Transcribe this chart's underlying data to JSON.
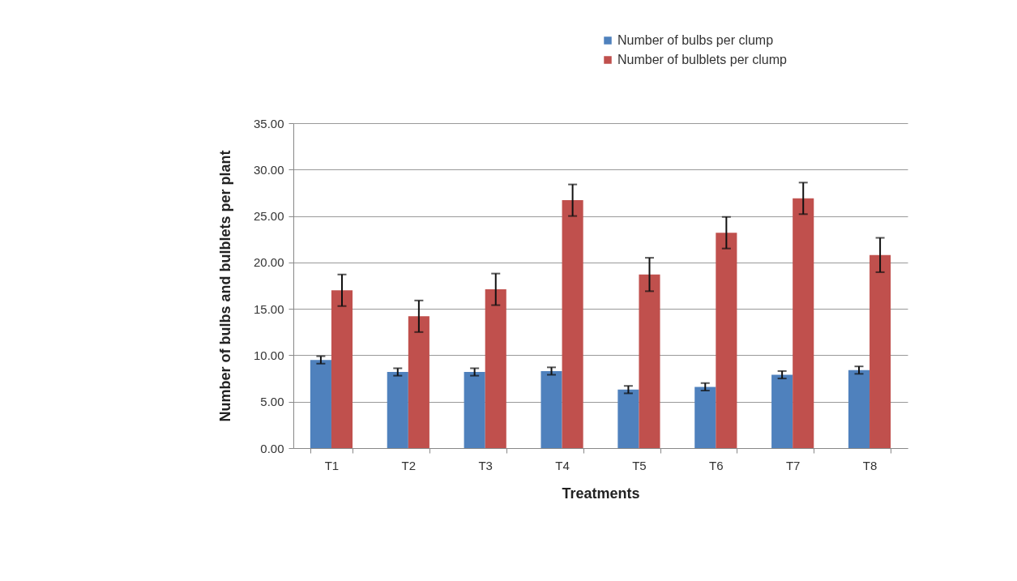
{
  "chart_data": {
    "type": "bar",
    "xlabel": "Treatments",
    "ylabel": "Number of bulbs and bulblets per plant",
    "categories": [
      "T1",
      "T2",
      "T3",
      "T4",
      "T5",
      "T6",
      "T7",
      "T8"
    ],
    "series": [
      {
        "name": "Number of bulbs per clump",
        "color": "#4f81bd",
        "values": [
          9.5,
          8.2,
          8.2,
          8.3,
          6.3,
          6.6,
          7.9,
          8.4
        ],
        "errors": [
          0.4,
          0.4,
          0.4,
          0.4,
          0.4,
          0.4,
          0.4,
          0.4
        ]
      },
      {
        "name": "Number of bulblets per clump",
        "color": "#c0504d",
        "values": [
          17.0,
          14.2,
          17.1,
          26.7,
          18.7,
          23.2,
          26.9,
          20.8
        ],
        "errors": [
          1.7,
          1.7,
          1.7,
          1.7,
          1.8,
          1.7,
          1.7,
          1.85
        ]
      }
    ],
    "ylim": [
      0,
      35
    ],
    "yticks": [
      {
        "value": 0,
        "label": "0.00"
      },
      {
        "value": 5,
        "label": "5.00"
      },
      {
        "value": 10,
        "label": "10.00"
      },
      {
        "value": 15,
        "label": "15.00"
      },
      {
        "value": 20,
        "label": "20.00"
      },
      {
        "value": 25,
        "label": "25.00"
      },
      {
        "value": 30,
        "label": "30.00"
      },
      {
        "value": 35,
        "label": "35.00"
      }
    ],
    "grid": "y",
    "legend": "top"
  }
}
